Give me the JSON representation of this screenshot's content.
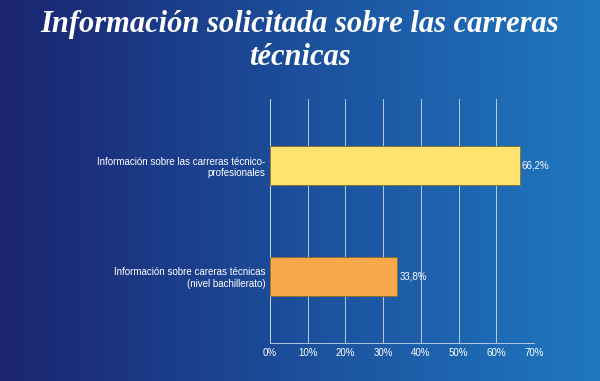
{
  "chart_data": {
    "type": "bar",
    "orientation": "horizontal",
    "title": "Información solicitada sobre las carreras técnicas",
    "categories": [
      "Información sobre las carreras técnico-profesionales",
      "Información sobre careras técnicas (nivel bachillerato)"
    ],
    "values": [
      66.2,
      33.8
    ],
    "value_labels": [
      "66,2%",
      "33,8%"
    ],
    "data_labels": true,
    "colors": [
      "#ffe36e",
      "#f7a84a"
    ],
    "xlim": [
      0,
      70
    ],
    "xticks": [
      {
        "value": 0,
        "label": "0%"
      },
      {
        "value": 10,
        "label": "10%"
      },
      {
        "value": 20,
        "label": "20%"
      },
      {
        "value": 30,
        "label": "30%"
      },
      {
        "value": 40,
        "label": "40%"
      },
      {
        "value": 50,
        "label": "50%"
      },
      {
        "value": 60,
        "label": "60%"
      },
      {
        "value": 70,
        "label": "70%"
      }
    ],
    "grid": true
  }
}
